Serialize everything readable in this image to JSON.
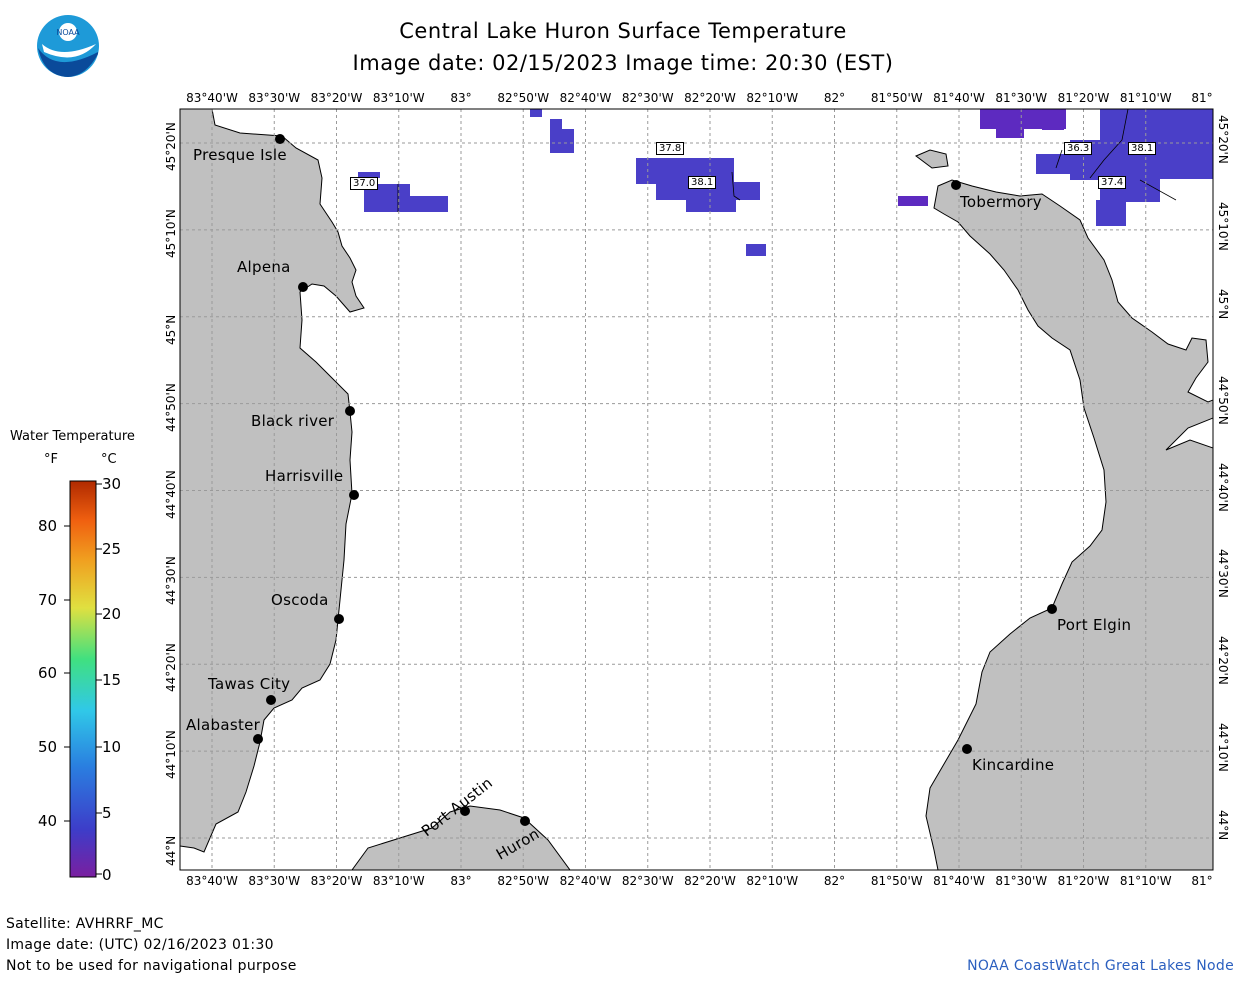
{
  "header": {
    "title": "Central Lake Huron Surface Temperature",
    "subtitle": "Image date: 02/15/2023     Image time: 20:30 (EST)"
  },
  "logo": {
    "text": "NOAA"
  },
  "longitude_labels": [
    "83°40'W",
    "83°30'W",
    "83°20'W",
    "83°10'W",
    "83°",
    "82°50'W",
    "82°40'W",
    "82°30'W",
    "82°20'W",
    "82°10'W",
    "82°",
    "81°50'W",
    "81°40'W",
    "81°30'W",
    "81°20'W",
    "81°10'W",
    "81°"
  ],
  "latitude_labels": [
    "45°20'N",
    "45°10'N",
    "45°N",
    "44°50'N",
    "44°40'N",
    "44°30'N",
    "44°20'N",
    "44°10'N",
    "44°N"
  ],
  "cities": [
    {
      "name": "Presque Isle"
    },
    {
      "name": "Alpena"
    },
    {
      "name": "Black river"
    },
    {
      "name": "Harrisville"
    },
    {
      "name": "Oscoda"
    },
    {
      "name": "Tawas City"
    },
    {
      "name": "Alabaster"
    },
    {
      "name": "Port Austin"
    },
    {
      "name": "Huron"
    },
    {
      "name": "Tobermory"
    },
    {
      "name": "Port Elgin"
    },
    {
      "name": "Kincardine"
    }
  ],
  "temperature_labels": [
    "37.0",
    "37.8",
    "38.1",
    "36.3",
    "38.1",
    "37.4"
  ],
  "legend": {
    "title": "Water Temperature",
    "unit_f": "°F",
    "unit_c": "°C",
    "fahrenheit_ticks": [
      "80",
      "70",
      "60",
      "50",
      "40"
    ],
    "celsius_ticks": [
      "30",
      "25",
      "20",
      "15",
      "10",
      "5",
      "0"
    ],
    "colors": [
      "#7a1fa0",
      "#3d3dc9",
      "#2a7fe0",
      "#30c8e8",
      "#40e080",
      "#e0e040",
      "#f0a020",
      "#f06010",
      "#b02a00"
    ]
  },
  "footer": {
    "satellite": "Satellite: AVHRRF_MC",
    "utc_date": "Image date: (UTC) 02/16/2023  01:30",
    "disclaimer": "Not to be used for navigational purpose",
    "credit": "NOAA CoastWatch Great Lakes Node"
  },
  "colors": {
    "land": "#c0c0c0",
    "water_temp_fill": "#4a3fc8",
    "water_temp_fill_alt": "#5d2ac0",
    "grid": "#9a9a9a",
    "credit": "#2b5fbf"
  }
}
